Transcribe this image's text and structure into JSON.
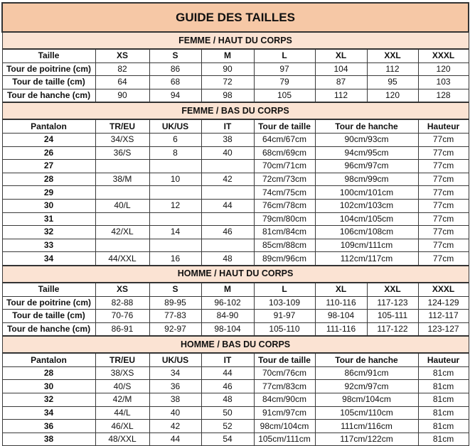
{
  "title": "GUIDE DES TAILLES",
  "colors": {
    "title_bg": "#f6c8a6",
    "section_bg": "#fbe3d3"
  },
  "sections": [
    {
      "heading": "FEMME / HAUT DU CORPS",
      "columns": [
        "Taille",
        "XS",
        "S",
        "M",
        "L",
        "XL",
        "XXL",
        "XXXL"
      ],
      "rows": [
        [
          "Tour de poitrine (cm)",
          "82",
          "86",
          "90",
          "97",
          "104",
          "112",
          "120"
        ],
        [
          "Tour de taille (cm)",
          "64",
          "68",
          "72",
          "79",
          "87",
          "95",
          "103"
        ],
        [
          "Tour de hanche (cm)",
          "90",
          "94",
          "98",
          "105",
          "112",
          "120",
          "128"
        ]
      ]
    },
    {
      "heading": "FEMME / BAS DU CORPS",
      "columns": [
        "Pantalon",
        "TR/EU",
        "UK/US",
        "IT",
        "Tour de taille",
        "Tour de hanche",
        "Hauteur"
      ],
      "rows": [
        [
          "24",
          "34/XS",
          "6",
          "38",
          "64cm/67cm",
          "90cm/93cm",
          "77cm"
        ],
        [
          "26",
          "36/S",
          "8",
          "40",
          "68cm/69cm",
          "94cm/95cm",
          "77cm"
        ],
        [
          "27",
          "",
          "",
          "",
          "70cm/71cm",
          "96cm/97cm",
          "77cm"
        ],
        [
          "28",
          "38/M",
          "10",
          "42",
          "72cm/73cm",
          "98cm/99cm",
          "77cm"
        ],
        [
          "29",
          "",
          "",
          "",
          "74cm/75cm",
          "100cm/101cm",
          "77cm"
        ],
        [
          "30",
          "40/L",
          "12",
          "44",
          "76cm/78cm",
          "102cm/103cm",
          "77cm"
        ],
        [
          "31",
          "",
          "",
          "",
          "79cm/80cm",
          "104cm/105cm",
          "77cm"
        ],
        [
          "32",
          "42/XL",
          "14",
          "46",
          "81cm/84cm",
          "106cm/108cm",
          "77cm"
        ],
        [
          "33",
          "",
          "",
          "",
          "85cm/88cm",
          "109cm/111cm",
          "77cm"
        ],
        [
          "34",
          "44/XXL",
          "16",
          "48",
          "89cm/96cm",
          "112cm/117cm",
          "77cm"
        ]
      ]
    },
    {
      "heading": "HOMME / HAUT DU CORPS",
      "columns": [
        "Taille",
        "XS",
        "S",
        "M",
        "L",
        "XL",
        "XXL",
        "XXXL"
      ],
      "rows": [
        [
          "Tour de poitrine (cm)",
          "82-88",
          "89-95",
          "96-102",
          "103-109",
          "110-116",
          "117-123",
          "124-129"
        ],
        [
          "Tour de taille (cm)",
          "70-76",
          "77-83",
          "84-90",
          "91-97",
          "98-104",
          "105-111",
          "112-117"
        ],
        [
          "Tour de hanche (cm)",
          "86-91",
          "92-97",
          "98-104",
          "105-110",
          "111-116",
          "117-122",
          "123-127"
        ]
      ]
    },
    {
      "heading": "HOMME / BAS DU CORPS",
      "columns": [
        "Pantalon",
        "TR/EU",
        "UK/US",
        "IT",
        "Tour de taille",
        "Tour de hanche",
        "Hauteur"
      ],
      "rows": [
        [
          "28",
          "38/XS",
          "34",
          "44",
          "70cm/76cm",
          "86cm/91cm",
          "81cm"
        ],
        [
          "30",
          "40/S",
          "36",
          "46",
          "77cm/83cm",
          "92cm/97cm",
          "81cm"
        ],
        [
          "32",
          "42/M",
          "38",
          "48",
          "84cm/90cm",
          "98cm/104cm",
          "81cm"
        ],
        [
          "34",
          "44/L",
          "40",
          "50",
          "91cm/97cm",
          "105cm/110cm",
          "81cm"
        ],
        [
          "36",
          "46/XL",
          "42",
          "52",
          "98cm/104cm",
          "111cm/116cm",
          "81cm"
        ],
        [
          "38",
          "48/XXL",
          "44",
          "54",
          "105cm/111cm",
          "117cm/122cm",
          "81cm"
        ]
      ]
    }
  ]
}
